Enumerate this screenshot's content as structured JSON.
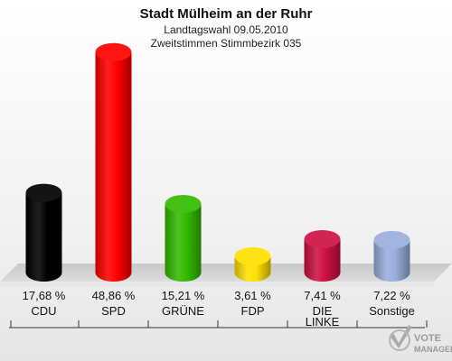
{
  "chart_data": {
    "type": "bar",
    "title": "Stadt Mülheim an der Ruhr",
    "subtitle_1": "Landtagswahl 09.05.2010",
    "subtitle_2": "Zweitstimmen Stimmbezirk 035",
    "categories": [
      "CDU",
      "SPD",
      "GRÜNE",
      "FDP",
      "DIE LINKE",
      "Sonstige"
    ],
    "category_lines": [
      [
        "CDU"
      ],
      [
        "SPD"
      ],
      [
        "GRÜNE"
      ],
      [
        "FDP"
      ],
      [
        "DIE",
        "LINKE"
      ],
      [
        "Sonstige"
      ]
    ],
    "values": [
      17.68,
      48.86,
      15.21,
      3.61,
      7.41,
      7.22
    ],
    "value_labels": [
      "17,68 %",
      "48,86 %",
      "15,21 %",
      "3,61 %",
      "7,41 %",
      "7,22 %"
    ],
    "colors": [
      "#000000",
      "#ff0000",
      "#33bb00",
      "#ffe000",
      "#cc1144",
      "#9aaedd"
    ],
    "ylim": [
      0,
      50
    ]
  },
  "logo": {
    "line1": "VOTE",
    "line2": "MANAGER"
  }
}
